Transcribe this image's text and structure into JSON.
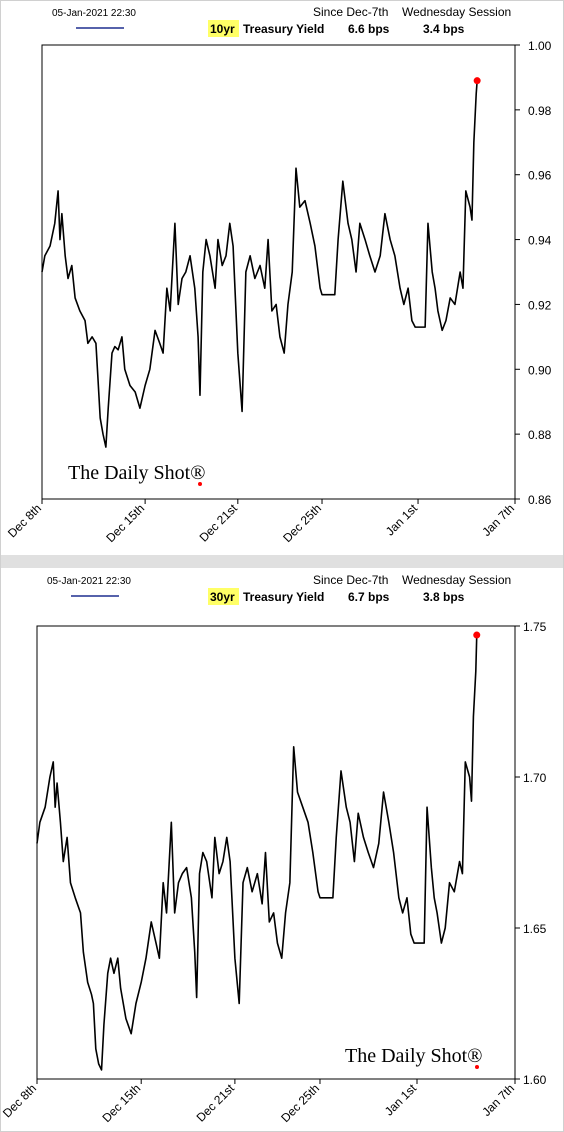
{
  "chart_data": [
    {
      "type": "line",
      "header": {
        "timestamp": "05-Jan-2021 22:30",
        "since_label": "Since Dec-7th",
        "session_label": "Wednesday Session",
        "since_value": "6.6 bps",
        "session_value": "3.4 bps"
      },
      "title": "Treasury Yield",
      "legend_color": "#1f2f8f",
      "last_point_color": "#ff0000",
      "watermark": "The Daily Shot®",
      "xlim": [
        0,
        100
      ],
      "xticks": [
        {
          "value": 0,
          "label": "Dec 8th"
        },
        {
          "value": 21.8,
          "label": "Dec 15th"
        },
        {
          "value": 41.4,
          "label": "Dec 21st"
        },
        {
          "value": 59.2,
          "label": "Dec 25th"
        },
        {
          "value": 79.5,
          "label": "Jan 1st"
        },
        {
          "value": 100,
          "label": "Jan 7th"
        }
      ],
      "ylim": [
        0.86,
        1.0
      ],
      "yticks": [
        0.86,
        0.88,
        {
          "value": 0.9,
          "label": "0.90"
        },
        0.92,
        0.94,
        0.96,
        0.98,
        {
          "value": 1.0,
          "label": "1.00"
        }
      ],
      "x": [
        0,
        0.6,
        1.7,
        2.7,
        3.4,
        3.8,
        4.2,
        4.9,
        5.5,
        6.3,
        7.0,
        8.0,
        9.1,
        9.7,
        10.6,
        11.4,
        11.8,
        12.3,
        12.9,
        13.5,
        14.0,
        14.8,
        15.4,
        16.1,
        16.9,
        17.5,
        18.6,
        19.7,
        20.7,
        21.8,
        22.8,
        23.9,
        24.9,
        25.6,
        26.4,
        27.1,
        28.1,
        28.8,
        29.6,
        30.4,
        31.3,
        32.3,
        33.0,
        33.4,
        34.0,
        34.7,
        35.5,
        36.6,
        37.2,
        38.1,
        38.9,
        39.7,
        40.4,
        41.4,
        42.3,
        43.1,
        44.0,
        45.0,
        46.1,
        47.1,
        47.8,
        48.6,
        49.5,
        50.3,
        51.2,
        52.0,
        52.9,
        53.7,
        54.5,
        55.6,
        56.7,
        57.7,
        58.8,
        59.2,
        61.9,
        62.6,
        63.6,
        64.7,
        65.5,
        66.4,
        67.2,
        68.3,
        69.3,
        70.4,
        71.5,
        72.5,
        73.6,
        74.6,
        75.7,
        76.5,
        77.4,
        78.2,
        78.9,
        81.0,
        81.6,
        82.5,
        83.1,
        83.7,
        84.6,
        85.4,
        86.3,
        87.3,
        88.4,
        89.0,
        89.6,
        90.5,
        90.9,
        91.3,
        91.8,
        92.0
      ],
      "series": [
        {
          "name": "10yr",
          "color": "#000000",
          "values": [
            0.93,
            0.935,
            0.938,
            0.945,
            0.955,
            0.94,
            0.948,
            0.935,
            0.928,
            0.932,
            0.922,
            0.918,
            0.915,
            0.908,
            0.91,
            0.908,
            0.898,
            0.885,
            0.88,
            0.876,
            0.888,
            0.905,
            0.907,
            0.906,
            0.91,
            0.9,
            0.895,
            0.893,
            0.888,
            0.895,
            0.9,
            0.912,
            0.908,
            0.905,
            0.925,
            0.918,
            0.945,
            0.92,
            0.928,
            0.93,
            0.935,
            0.925,
            0.91,
            0.892,
            0.93,
            0.94,
            0.935,
            0.925,
            0.94,
            0.932,
            0.935,
            0.945,
            0.938,
            0.905,
            0.887,
            0.93,
            0.935,
            0.928,
            0.932,
            0.925,
            0.94,
            0.918,
            0.92,
            0.91,
            0.905,
            0.92,
            0.93,
            0.962,
            0.95,
            0.952,
            0.945,
            0.938,
            0.925,
            0.923,
            0.923,
            0.94,
            0.958,
            0.945,
            0.94,
            0.93,
            0.945,
            0.94,
            0.935,
            0.93,
            0.935,
            0.948,
            0.94,
            0.935,
            0.925,
            0.92,
            0.925,
            0.915,
            0.913,
            0.913,
            0.945,
            0.93,
            0.925,
            0.918,
            0.912,
            0.915,
            0.922,
            0.92,
            0.93,
            0.925,
            0.955,
            0.95,
            0.946,
            0.97,
            0.985,
            0.989
          ]
        }
      ]
    },
    {
      "type": "line",
      "header": {
        "timestamp": "05-Jan-2021 22:30",
        "since_label": "Since Dec-7th",
        "session_label": "Wednesday Session",
        "since_value": "6.7 bps",
        "session_value": "3.8 bps"
      },
      "title": "Treasury Yield",
      "legend_color": "#1f2f8f",
      "last_point_color": "#ff0000",
      "watermark": "The Daily Shot®",
      "xlim": [
        0,
        100
      ],
      "xticks": [
        {
          "value": 0,
          "label": "Dec 8th"
        },
        {
          "value": 21.8,
          "label": "Dec 15th"
        },
        {
          "value": 41.4,
          "label": "Dec 21st"
        },
        {
          "value": 59.2,
          "label": "Dec 25th"
        },
        {
          "value": 79.5,
          "label": "Jan 1st"
        },
        {
          "value": 100,
          "label": "Jan 7th"
        }
      ],
      "ylim": [
        1.6,
        1.75
      ],
      "yticks": [
        {
          "value": 1.6,
          "label": "1.60"
        },
        1.65,
        {
          "value": 1.7,
          "label": "1.70"
        },
        1.75
      ],
      "x": [
        0,
        0.6,
        1.7,
        2.7,
        3.4,
        3.8,
        4.2,
        4.9,
        5.5,
        6.3,
        7.0,
        8.0,
        9.1,
        9.7,
        10.6,
        11.4,
        11.8,
        12.3,
        12.9,
        13.5,
        14.0,
        14.8,
        15.4,
        16.1,
        16.9,
        17.5,
        18.6,
        19.7,
        20.7,
        21.8,
        22.8,
        23.9,
        24.9,
        25.6,
        26.4,
        27.1,
        28.1,
        28.8,
        29.6,
        30.4,
        31.3,
        32.3,
        33.0,
        33.4,
        34.0,
        34.7,
        35.5,
        36.6,
        37.2,
        38.1,
        38.9,
        39.7,
        40.4,
        41.4,
        42.3,
        43.1,
        44.0,
        45.0,
        46.1,
        47.1,
        47.8,
        48.6,
        49.5,
        50.3,
        51.2,
        52.0,
        52.9,
        53.7,
        54.5,
        55.6,
        56.7,
        57.7,
        58.8,
        59.2,
        61.9,
        62.6,
        63.6,
        64.7,
        65.5,
        66.4,
        67.2,
        68.3,
        69.3,
        70.4,
        71.5,
        72.5,
        73.6,
        74.6,
        75.7,
        76.5,
        77.4,
        78.2,
        78.9,
        81.0,
        81.6,
        82.5,
        83.1,
        83.7,
        84.6,
        85.4,
        86.3,
        87.3,
        88.4,
        89.0,
        89.6,
        90.5,
        90.9,
        91.3,
        91.8,
        92.0
      ],
      "series": [
        {
          "name": "30yr",
          "color": "#000000",
          "values": [
            1.678,
            1.685,
            1.69,
            1.7,
            1.705,
            1.69,
            1.698,
            1.685,
            1.672,
            1.68,
            1.665,
            1.66,
            1.655,
            1.642,
            1.632,
            1.628,
            1.625,
            1.61,
            1.605,
            1.603,
            1.618,
            1.635,
            1.64,
            1.635,
            1.64,
            1.63,
            1.62,
            1.615,
            1.625,
            1.632,
            1.64,
            1.652,
            1.645,
            1.64,
            1.665,
            1.655,
            1.685,
            1.655,
            1.665,
            1.668,
            1.67,
            1.66,
            1.642,
            1.627,
            1.668,
            1.675,
            1.672,
            1.66,
            1.68,
            1.668,
            1.672,
            1.68,
            1.672,
            1.64,
            1.625,
            1.665,
            1.67,
            1.662,
            1.668,
            1.658,
            1.675,
            1.652,
            1.655,
            1.645,
            1.64,
            1.655,
            1.665,
            1.71,
            1.695,
            1.69,
            1.685,
            1.675,
            1.662,
            1.66,
            1.66,
            1.68,
            1.702,
            1.69,
            1.685,
            1.672,
            1.688,
            1.68,
            1.675,
            1.67,
            1.678,
            1.695,
            1.685,
            1.675,
            1.66,
            1.655,
            1.66,
            1.648,
            1.645,
            1.645,
            1.69,
            1.67,
            1.66,
            1.655,
            1.645,
            1.65,
            1.665,
            1.662,
            1.672,
            1.668,
            1.705,
            1.7,
            1.692,
            1.72,
            1.735,
            1.747
          ]
        }
      ]
    }
  ]
}
